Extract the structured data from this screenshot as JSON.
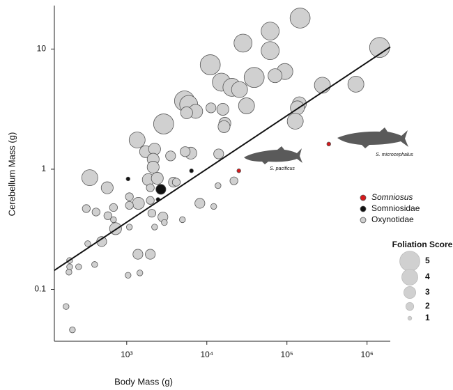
{
  "chart_data": {
    "type": "scatter",
    "x_label": "Body Mass (g)",
    "y_label": "Cerebellum Mass (g)",
    "log_x": true,
    "log_y": true,
    "xlim": [
      125,
      1950000
    ],
    "ylim": [
      0.037,
      23
    ],
    "xticks": [
      {
        "value": 1000,
        "label": "10³"
      },
      {
        "value": 10000,
        "label": "10⁴"
      },
      {
        "value": 100000,
        "label": "10⁵"
      },
      {
        "value": 1000000,
        "label": "10⁶"
      }
    ],
    "yticks": [
      0.1,
      1,
      10
    ],
    "series": [
      {
        "name": "Oxynotidae",
        "color": "#d0d0d0",
        "x": [
          146000,
          61800,
          28300,
          61800,
          1435000,
          11040,
          94200,
          39000,
          71100,
          15200,
          20600,
          25600,
          277000,
          726000,
          31300,
          143000,
          135000,
          5270,
          5940,
          7260,
          5600,
          11270,
          15850,
          16800,
          16400,
          127000,
          2890,
          1350,
          1720,
          2230,
          2140,
          2140,
          6310,
          5370,
          3530,
          14060,
          346,
          571,
          1860,
          2410,
          3830,
          4160,
          1970,
          1080,
          1400,
          1080,
          1970,
          313,
          414,
          684,
          582,
          2060,
          2830,
          726,
          684,
          8190,
          12200,
          21800,
          13800,
          487,
          326,
          1080,
          2950,
          2230,
          4960,
          1380,
          1970,
          1460,
          1040,
          398,
          251,
          194,
          194,
          190,
          175,
          210
        ],
        "y": [
          18.1,
          14.1,
          11.2,
          9.7,
          10.3,
          7.4,
          6.5,
          5.8,
          6.0,
          5.3,
          4.8,
          4.6,
          5.0,
          5.1,
          3.37,
          3.5,
          3.24,
          3.7,
          3.46,
          3.03,
          2.95,
          3.24,
          3.15,
          2.41,
          2.26,
          2.51,
          2.38,
          1.75,
          1.4,
          1.47,
          1.21,
          1.04,
          1.36,
          1.4,
          1.29,
          1.34,
          0.85,
          0.7,
          0.82,
          0.84,
          0.78,
          0.78,
          0.7,
          0.59,
          0.52,
          0.5,
          0.55,
          0.47,
          0.44,
          0.48,
          0.41,
          0.43,
          0.4,
          0.32,
          0.38,
          0.52,
          0.49,
          0.8,
          0.73,
          0.25,
          0.24,
          0.33,
          0.36,
          0.33,
          0.38,
          0.196,
          0.196,
          0.137,
          0.131,
          0.161,
          0.154,
          0.174,
          0.154,
          0.139,
          0.072,
          0.046
        ],
        "size": [
          5,
          4.5,
          4.5,
          4.5,
          5,
          5,
          4,
          5,
          3.5,
          4.5,
          4.5,
          4,
          4,
          4,
          4,
          3.5,
          3.5,
          5,
          4.5,
          3.5,
          3,
          2.5,
          3,
          3,
          3,
          4,
          5,
          4,
          3,
          3,
          3,
          3,
          3,
          2.5,
          2.5,
          2.5,
          4,
          3,
          3,
          3,
          2.5,
          2,
          2,
          2,
          3,
          2,
          2,
          2,
          2,
          2,
          2,
          2,
          2.5,
          3,
          1.5,
          2.5,
          1.5,
          2,
          1.5,
          2.5,
          1.5,
          1.5,
          1.5,
          1.5,
          1.5,
          2.5,
          2.5,
          1.5,
          1.5,
          1.5,
          1.5,
          1.5,
          1.5,
          1.5,
          1.5,
          1.5
        ]
      },
      {
        "name": "Somniosidae",
        "color": "#111111",
        "x": [
          2670,
          1040,
          2460,
          6430
        ],
        "y": [
          0.68,
          0.83,
          0.56,
          0.97
        ],
        "size": [
          2.5,
          1,
          1,
          1
        ]
      },
      {
        "name": "Somniosus",
        "color": "#d7191c",
        "x": [
          25100,
          333000
        ],
        "y": [
          0.97,
          1.62
        ],
        "size": [
          1,
          1
        ]
      }
    ],
    "fit": {
      "x": [
        125,
        1950000
      ],
      "y": [
        0.144,
        10.4
      ]
    },
    "annotations": [
      "S. pacificus",
      "S. microcephalus"
    ],
    "size_legend_title": "Foliation Score",
    "size_legend": [
      5,
      4,
      3,
      2,
      1
    ]
  }
}
